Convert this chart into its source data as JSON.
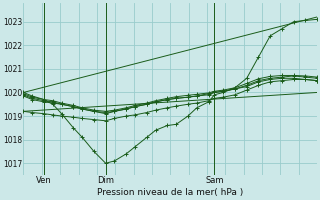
{
  "title": "Pression niveau de la mer( hPa )",
  "background_color": "#cce8e8",
  "grid_color": "#99cccc",
  "line_color": "#1a5c1a",
  "ylim": [
    1016.5,
    1023.8
  ],
  "yticks": [
    1017,
    1018,
    1019,
    1020,
    1021,
    1022,
    1023
  ],
  "xlim": [
    0,
    100
  ],
  "xtick_labels": [
    "Ven",
    "Dim",
    "Sam"
  ],
  "xtick_positions": [
    7,
    28,
    65
  ],
  "vline_positions": [
    7,
    28,
    65
  ],
  "num_vgrid": 16,
  "series": [
    {
      "x": [
        0,
        3,
        7,
        10,
        13,
        17,
        20,
        24,
        28,
        31,
        35,
        38,
        42,
        45,
        49,
        52,
        56,
        59,
        63,
        65,
        68,
        72,
        76,
        80,
        84,
        88,
        92,
        96,
        100
      ],
      "y": [
        1020.0,
        1019.85,
        1019.7,
        1019.5,
        1019.1,
        1018.5,
        1018.1,
        1017.5,
        1017.0,
        1017.1,
        1017.4,
        1017.7,
        1018.1,
        1018.4,
        1018.6,
        1018.65,
        1019.0,
        1019.35,
        1019.6,
        1019.9,
        1020.0,
        1020.2,
        1020.6,
        1021.5,
        1022.4,
        1022.7,
        1023.0,
        1023.05,
        1023.1
      ]
    },
    {
      "x": [
        0,
        3,
        7,
        10,
        13,
        17,
        20,
        24,
        28,
        31,
        35,
        38,
        42,
        45,
        49,
        52,
        56,
        59,
        63,
        65,
        68,
        72,
        76,
        80,
        84,
        88,
        92,
        96,
        100
      ],
      "y": [
        1019.9,
        1019.75,
        1019.65,
        1019.6,
        1019.5,
        1019.4,
        1019.3,
        1019.2,
        1019.15,
        1019.2,
        1019.3,
        1019.4,
        1019.5,
        1019.6,
        1019.7,
        1019.75,
        1019.8,
        1019.85,
        1019.9,
        1020.0,
        1020.05,
        1020.15,
        1020.3,
        1020.5,
        1020.6,
        1020.65,
        1020.7,
        1020.65,
        1020.6
      ]
    },
    {
      "x": [
        0,
        3,
        7,
        10,
        13,
        17,
        20,
        24,
        28,
        31,
        35,
        38,
        42,
        45,
        49,
        52,
        56,
        59,
        63,
        65,
        68,
        72,
        76,
        80,
        84,
        88,
        92,
        96,
        100
      ],
      "y": [
        1019.85,
        1019.7,
        1019.6,
        1019.55,
        1019.5,
        1019.4,
        1019.3,
        1019.2,
        1019.1,
        1019.2,
        1019.3,
        1019.4,
        1019.5,
        1019.6,
        1019.7,
        1019.75,
        1019.8,
        1019.85,
        1019.95,
        1020.0,
        1020.05,
        1020.15,
        1020.25,
        1020.45,
        1020.55,
        1020.6,
        1020.6,
        1020.55,
        1020.5
      ]
    },
    {
      "x": [
        0,
        3,
        7,
        10,
        13,
        17,
        20,
        24,
        28,
        31,
        35,
        38,
        42,
        45,
        49,
        52,
        56,
        59,
        63,
        65,
        68,
        72,
        76,
        80,
        84,
        88,
        92,
        96,
        100
      ],
      "y": [
        1019.95,
        1019.8,
        1019.7,
        1019.65,
        1019.55,
        1019.45,
        1019.35,
        1019.25,
        1019.2,
        1019.25,
        1019.35,
        1019.45,
        1019.55,
        1019.65,
        1019.75,
        1019.82,
        1019.88,
        1019.92,
        1019.98,
        1020.05,
        1020.1,
        1020.2,
        1020.38,
        1020.58,
        1020.68,
        1020.72,
        1020.72,
        1020.7,
        1020.65
      ]
    },
    {
      "x": [
        0,
        3,
        7,
        10,
        13,
        17,
        20,
        24,
        28,
        31,
        35,
        38,
        42,
        45,
        49,
        52,
        56,
        59,
        63,
        65,
        68,
        72,
        76,
        80,
        84,
        88,
        92,
        96,
        100
      ],
      "y": [
        1019.2,
        1019.15,
        1019.1,
        1019.05,
        1019.0,
        1018.95,
        1018.9,
        1018.85,
        1018.8,
        1018.9,
        1019.0,
        1019.05,
        1019.15,
        1019.25,
        1019.35,
        1019.42,
        1019.5,
        1019.55,
        1019.65,
        1019.75,
        1019.8,
        1019.9,
        1020.1,
        1020.3,
        1020.45,
        1020.5,
        1020.55,
        1020.55,
        1020.5
      ]
    },
    {
      "x": [
        0,
        100
      ],
      "y": [
        1020.0,
        1023.2
      ]
    },
    {
      "x": [
        0,
        100
      ],
      "y": [
        1019.2,
        1020.0
      ]
    }
  ]
}
